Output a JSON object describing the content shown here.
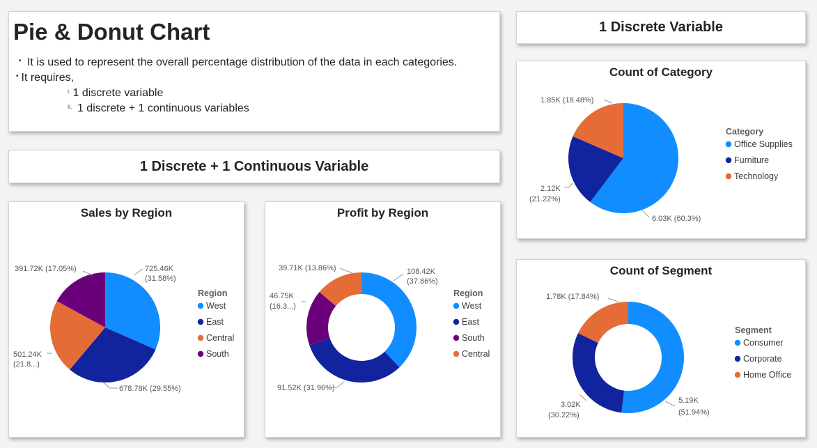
{
  "intro": {
    "title": "Pie & Donut Chart",
    "bullet1": "It is used to represent the overall percentage distribution of the data in each categories.",
    "bullet2": "It requires,",
    "sub1_marker": "i.",
    "sub1": "1 discrete variable",
    "sub2_marker": "ii.",
    "sub2": "1 discrete + 1 continuous variables",
    "bullet_symbol": "•"
  },
  "banners": {
    "discrete_continuous": "1 Discrete + 1 Continuous Variable",
    "discrete": "1 Discrete Variable"
  },
  "chart_data": [
    {
      "id": "sales_region",
      "type": "pie",
      "title": "Sales by Region",
      "legend_title": "Region",
      "legend_position": "right",
      "slices": [
        {
          "name": "West",
          "value": 725.46,
          "percent": 31.58,
          "color": "#118DFF",
          "label": [
            "725.46K",
            "(31.58%)"
          ]
        },
        {
          "name": "East",
          "value": 678.78,
          "percent": 29.55,
          "color": "#12239E",
          "label": [
            "678.78K (29.55%)"
          ]
        },
        {
          "name": "Central",
          "value": 501.24,
          "percent": 21.82,
          "color": "#E66C37",
          "label": [
            "501.24K",
            "(21.8...)"
          ]
        },
        {
          "name": "South",
          "value": 391.72,
          "percent": 17.05,
          "color": "#6B007B",
          "label": [
            "391.72K (17.05%)"
          ]
        }
      ]
    },
    {
      "id": "profit_region",
      "type": "donut",
      "title": "Profit by Region",
      "legend_title": "Region",
      "legend_position": "right",
      "slices": [
        {
          "name": "West",
          "value": 108.42,
          "percent": 37.86,
          "color": "#118DFF",
          "label": [
            "108.42K",
            "(37.86%)"
          ]
        },
        {
          "name": "East",
          "value": 91.52,
          "percent": 31.96,
          "color": "#12239E",
          "label": [
            "91.52K (31.96%)"
          ]
        },
        {
          "name": "South",
          "value": 46.75,
          "percent": 16.32,
          "color": "#6B007B",
          "label": [
            "46.75K",
            "(16.3...)"
          ]
        },
        {
          "name": "Central",
          "value": 39.71,
          "percent": 13.86,
          "color": "#E66C37",
          "label": [
            "39.71K (13.86%)"
          ]
        }
      ]
    },
    {
      "id": "count_category",
      "type": "pie",
      "title": "Count of Category",
      "legend_title": "Category",
      "legend_position": "right",
      "slices": [
        {
          "name": "Office Supplies",
          "value": 6030,
          "percent": 60.3,
          "color": "#118DFF",
          "label": [
            "6.03K (60.3%)"
          ]
        },
        {
          "name": "Furniture",
          "value": 2120,
          "percent": 21.22,
          "color": "#12239E",
          "label": [
            "2.12K",
            "(21.22%)"
          ]
        },
        {
          "name": "Technology",
          "value": 1850,
          "percent": 18.48,
          "color": "#E66C37",
          "label": [
            "1.85K (18.48%)"
          ]
        }
      ]
    },
    {
      "id": "count_segment",
      "type": "donut",
      "title": "Count of Segment",
      "legend_title": "Segment",
      "legend_position": "right",
      "slices": [
        {
          "name": "Consumer",
          "value": 5190,
          "percent": 51.94,
          "color": "#118DFF",
          "label": [
            "5.19K",
            "(51.94%)"
          ]
        },
        {
          "name": "Corporate",
          "value": 3020,
          "percent": 30.22,
          "color": "#12239E",
          "label": [
            "3.02K",
            "(30.22%)"
          ]
        },
        {
          "name": "Home Office",
          "value": 1780,
          "percent": 17.84,
          "color": "#E66C37",
          "label": [
            "1.78K (17.84%)"
          ]
        }
      ]
    }
  ]
}
